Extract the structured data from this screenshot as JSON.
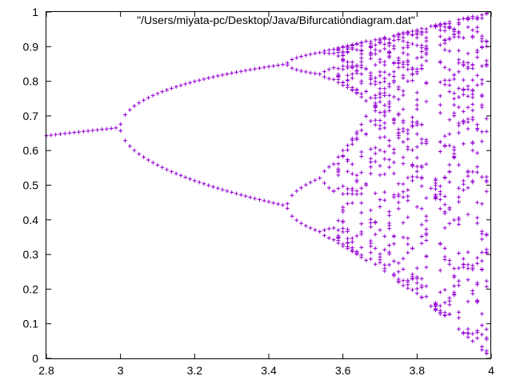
{
  "chart_data": {
    "type": "scatter",
    "title": "",
    "xlabel": "",
    "ylabel": "",
    "xlim": [
      2.8,
      4.0
    ],
    "ylim": [
      0,
      1
    ],
    "x_ticks": [
      2.8,
      3.0,
      3.2,
      3.4,
      3.6,
      3.8,
      4.0
    ],
    "x_tick_labels": [
      "2.8",
      "3",
      "3.2",
      "3.4",
      "3.6",
      "3.8",
      "4"
    ],
    "y_ticks": [
      0,
      0.1,
      0.2,
      0.3,
      0.4,
      0.5,
      0.6,
      0.7,
      0.8,
      0.9,
      1.0
    ],
    "y_tick_labels": [
      "0",
      "0.1",
      "0.2",
      "0.3",
      "0.4",
      "0.5",
      "0.6",
      "0.7",
      "0.8",
      "0.9",
      "1"
    ],
    "legend": {
      "label": "\"/Users/miyata-pc/Desktop/Java/Bifurcationdiagram.dat\"",
      "placement": "top-center"
    },
    "marker": "+",
    "grid": false,
    "series": [
      {
        "name": "\"/Users/miyata-pc/Desktop/Java/Bifurcationdiagram.dat\"",
        "color": "#9400d3",
        "description": "Logistic map x(n+1) = r x(n) (1 - x(n)) attractor, r from 2.8 to 4.0",
        "r_start": 2.8,
        "r_end": 4.0,
        "r_step": 0.0125,
        "points_per_r": 30,
        "sample_points": [
          {
            "r": 2.8,
            "x": 0.643
          },
          {
            "r": 2.9,
            "x": 0.655
          },
          {
            "r": 3.0,
            "x": 0.667
          },
          {
            "r": 3.2,
            "x": 0.799
          },
          {
            "r": 3.2,
            "x": 0.513
          },
          {
            "r": 3.4,
            "x": 0.842
          },
          {
            "r": 3.4,
            "x": 0.452
          },
          {
            "r": 3.5,
            "x": 0.875
          },
          {
            "r": 3.5,
            "x": 0.383
          },
          {
            "r": 3.5,
            "x": 0.827
          },
          {
            "r": 3.5,
            "x": 0.501
          },
          {
            "r": 3.83,
            "x": 0.957
          },
          {
            "r": 3.83,
            "x": 0.505
          },
          {
            "r": 3.83,
            "x": 0.156
          },
          {
            "r": 4.0,
            "x": 1.0
          },
          {
            "r": 4.0,
            "x": 0.0
          }
        ]
      }
    ]
  }
}
